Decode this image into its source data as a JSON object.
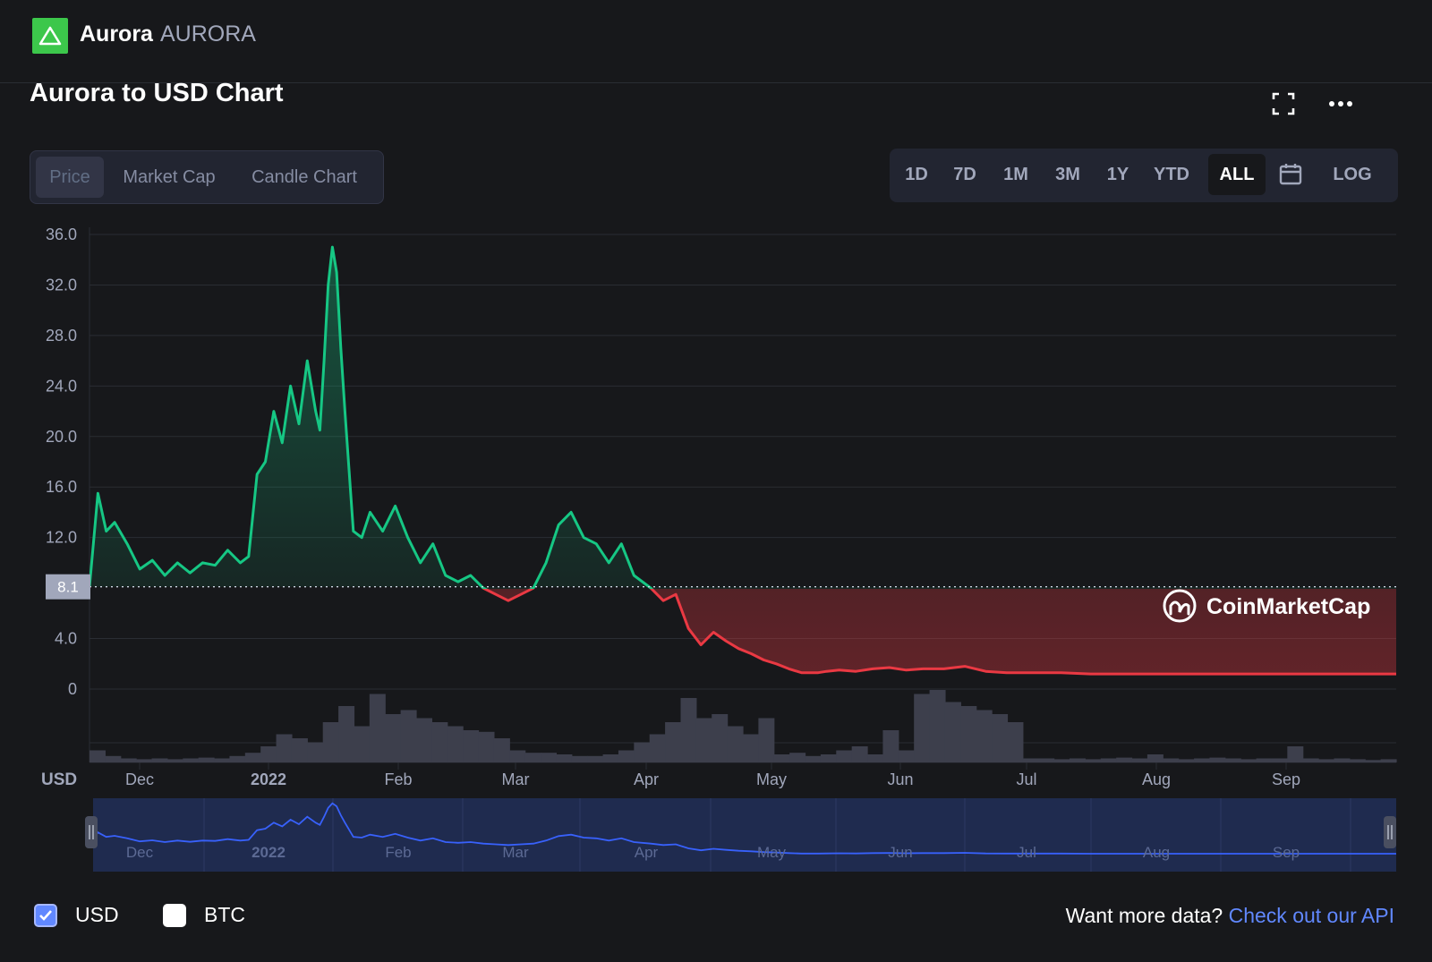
{
  "header": {
    "coin_name": "Aurora",
    "coin_symbol": "AURORA",
    "logo_icon": "aurora-triangle-icon",
    "brand_color": "#3cc74b"
  },
  "title": "Aurora to USD Chart",
  "toolbar": {
    "fullscreen_icon": "fullscreen-icon",
    "more_icon": "more-options-icon"
  },
  "tabs": [
    {
      "label": "Price",
      "active": true
    },
    {
      "label": "Market Cap",
      "active": false
    },
    {
      "label": "Candle Chart",
      "active": false
    }
  ],
  "ranges": [
    {
      "label": "1D"
    },
    {
      "label": "7D"
    },
    {
      "label": "1M"
    },
    {
      "label": "3M"
    },
    {
      "label": "1Y"
    },
    {
      "label": "YTD"
    },
    {
      "label": "ALL",
      "active": true
    }
  ],
  "calendar_icon": "calendar-icon",
  "log_label": "LOG",
  "colors": {
    "up": "#16c784",
    "down": "#ea3943",
    "volume": "#3d3f4c",
    "navigator": "#3861fb",
    "grid": "#2a2d33",
    "axis_text": "#a1a7bb"
  },
  "chart_data": {
    "type": "area",
    "currency_label": "USD",
    "y_ticks": [
      "36.0",
      "32.0",
      "28.0",
      "24.0",
      "20.0",
      "16.0",
      "12.0",
      "4.0",
      "0"
    ],
    "ylim": [
      0,
      36
    ],
    "x_ticks": [
      {
        "label": "Dec",
        "bold": false
      },
      {
        "label": "2022",
        "bold": true
      },
      {
        "label": "Feb",
        "bold": false
      },
      {
        "label": "Mar",
        "bold": false
      },
      {
        "label": "Apr",
        "bold": false
      },
      {
        "label": "May",
        "bold": false
      },
      {
        "label": "Jun",
        "bold": false
      },
      {
        "label": "Jul",
        "bold": false
      },
      {
        "label": "Aug",
        "bold": false
      },
      {
        "label": "Sep",
        "bold": false
      }
    ],
    "baseline": {
      "label": "8.1",
      "value": 8.1
    },
    "watermark": "CoinMarketCap",
    "series": [
      {
        "x": [
          "2021-11-18",
          "2021-11-20",
          "2021-11-22",
          "2021-11-24",
          "2021-11-27",
          "2021-11-30",
          "2021-12-03",
          "2021-12-06",
          "2021-12-09",
          "2021-12-12",
          "2021-12-15",
          "2021-12-18",
          "2021-12-21",
          "2021-12-24",
          "2021-12-26",
          "2021-12-28",
          "2021-12-30",
          "2022-01-01",
          "2022-01-03",
          "2022-01-05",
          "2022-01-07",
          "2022-01-09",
          "2022-01-11",
          "2022-01-12",
          "2022-01-13",
          "2022-01-14",
          "2022-01-15",
          "2022-01-16",
          "2022-01-17",
          "2022-01-18",
          "2022-01-20",
          "2022-01-22",
          "2022-01-24",
          "2022-01-27",
          "2022-01-30",
          "2022-02-02",
          "2022-02-05",
          "2022-02-08",
          "2022-02-11",
          "2022-02-14",
          "2022-02-17",
          "2022-02-20",
          "2022-02-23",
          "2022-02-26",
          "2022-03-01",
          "2022-03-04",
          "2022-03-07",
          "2022-03-10",
          "2022-03-13",
          "2022-03-16",
          "2022-03-19",
          "2022-03-22",
          "2022-03-25",
          "2022-03-28",
          "2022-04-01",
          "2022-04-04",
          "2022-04-07",
          "2022-04-10",
          "2022-04-13",
          "2022-04-16",
          "2022-04-19",
          "2022-04-22",
          "2022-04-25",
          "2022-04-28",
          "2022-05-01",
          "2022-05-04",
          "2022-05-07",
          "2022-05-09",
          "2022-05-11",
          "2022-05-13",
          "2022-05-16",
          "2022-05-20",
          "2022-05-24",
          "2022-05-28",
          "2022-06-01",
          "2022-06-05",
          "2022-06-10",
          "2022-06-15",
          "2022-06-20",
          "2022-06-25",
          "2022-07-01",
          "2022-07-08",
          "2022-07-15",
          "2022-07-22",
          "2022-08-01",
          "2022-08-08",
          "2022-08-15",
          "2022-08-22",
          "2022-08-29",
          "2022-09-05",
          "2022-09-12",
          "2022-09-19",
          "2022-09-26"
        ],
        "values": [
          8.1,
          15.5,
          12.5,
          13.2,
          11.5,
          9.5,
          10.2,
          9.0,
          10.0,
          9.2,
          10.0,
          9.8,
          11.0,
          10.0,
          10.5,
          17.0,
          18.0,
          22.0,
          19.5,
          24.0,
          21.0,
          26.0,
          22.0,
          20.5,
          26.0,
          32.0,
          35.0,
          33.0,
          27.0,
          22.0,
          12.5,
          12.0,
          14.0,
          12.5,
          14.5,
          12.0,
          10.0,
          11.5,
          9.0,
          8.5,
          9.0,
          8.0,
          7.5,
          7.0,
          7.5,
          8.0,
          10.0,
          13.0,
          14.0,
          12.0,
          11.5,
          10.0,
          11.5,
          9.0,
          8.0,
          7.0,
          7.5,
          4.8,
          3.5,
          4.5,
          3.8,
          3.2,
          2.8,
          2.3,
          2.0,
          1.6,
          1.3,
          1.3,
          1.3,
          1.4,
          1.5,
          1.4,
          1.6,
          1.7,
          1.5,
          1.6,
          1.6,
          1.8,
          1.4,
          1.3,
          1.3,
          1.3,
          1.2,
          1.2,
          1.2,
          1.2,
          1.2,
          1.2,
          1.2,
          1.2,
          1.2,
          1.2,
          1.2
        ]
      }
    ],
    "volume_levels": [
      0.15,
      0.08,
      0.05,
      0.04,
      0.05,
      0.04,
      0.05,
      0.06,
      0.05,
      0.08,
      0.12,
      0.2,
      0.35,
      0.3,
      0.25,
      0.5,
      0.7,
      0.45,
      0.85,
      0.6,
      0.65,
      0.55,
      0.5,
      0.45,
      0.4,
      0.38,
      0.3,
      0.15,
      0.12,
      0.12,
      0.1,
      0.08,
      0.08,
      0.1,
      0.15,
      0.25,
      0.35,
      0.5,
      0.8,
      0.55,
      0.6,
      0.45,
      0.35,
      0.55,
      0.1,
      0.12,
      0.08,
      0.1,
      0.15,
      0.2,
      0.1,
      0.4,
      0.15,
      0.85,
      0.9,
      0.75,
      0.7,
      0.65,
      0.6,
      0.5,
      0.05,
      0.05,
      0.04,
      0.05,
      0.04,
      0.05,
      0.06,
      0.05,
      0.1,
      0.05,
      0.04,
      0.05,
      0.06,
      0.05,
      0.04,
      0.05,
      0.05,
      0.2,
      0.05,
      0.04,
      0.05,
      0.04,
      0.03,
      0.04
    ]
  },
  "legend": {
    "usd_label": "USD",
    "usd_checked": true,
    "btc_label": "BTC",
    "btc_checked": false
  },
  "footer": {
    "prompt": "Want more data?",
    "link": "Check out our API"
  }
}
